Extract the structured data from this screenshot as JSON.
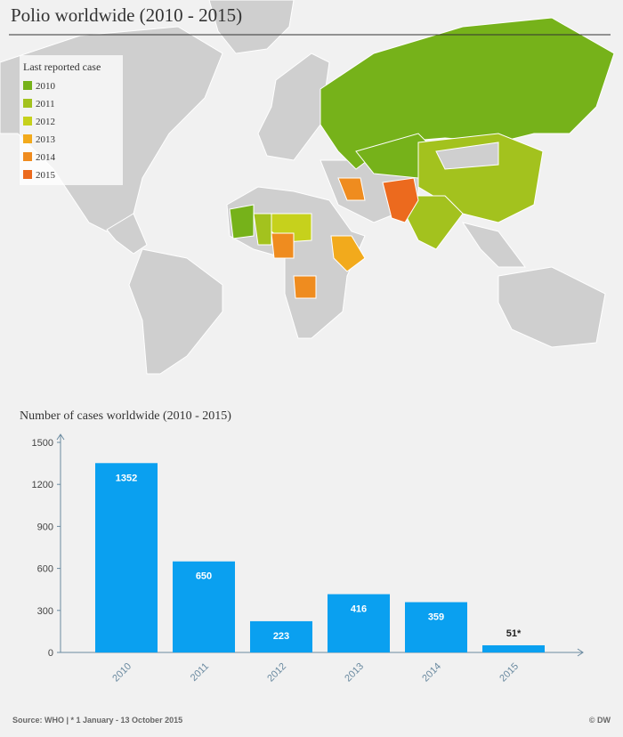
{
  "title": "Polio worldwide (2010 - 2015)",
  "map": {
    "legend_title": "Last reported case",
    "legend": [
      {
        "label": "2010",
        "color": "#76b21a"
      },
      {
        "label": "2011",
        "color": "#a3c21e"
      },
      {
        "label": "2012",
        "color": "#c6d11c"
      },
      {
        "label": "2013",
        "color": "#f2aa1c"
      },
      {
        "label": "2014",
        "color": "#ef8c1f"
      },
      {
        "label": "2015",
        "color": "#ec6a1e"
      }
    ]
  },
  "chart_data": {
    "type": "bar",
    "title": "Number of cases worldwide (2010 - 2015)",
    "categories": [
      "2010",
      "2011",
      "2012",
      "2013",
      "2014",
      "2015"
    ],
    "values": [
      1352,
      650,
      223,
      416,
      359,
      51
    ],
    "value_labels": [
      "1352",
      "650",
      "223",
      "416",
      "359",
      "51*"
    ],
    "color": "#0aa0f0",
    "ylim": [
      0,
      1500
    ],
    "yticks": [
      0,
      300,
      600,
      900,
      1200,
      1500
    ]
  },
  "source": "Source: WHO | * 1 January -  13 October 2015",
  "credit": "© DW"
}
